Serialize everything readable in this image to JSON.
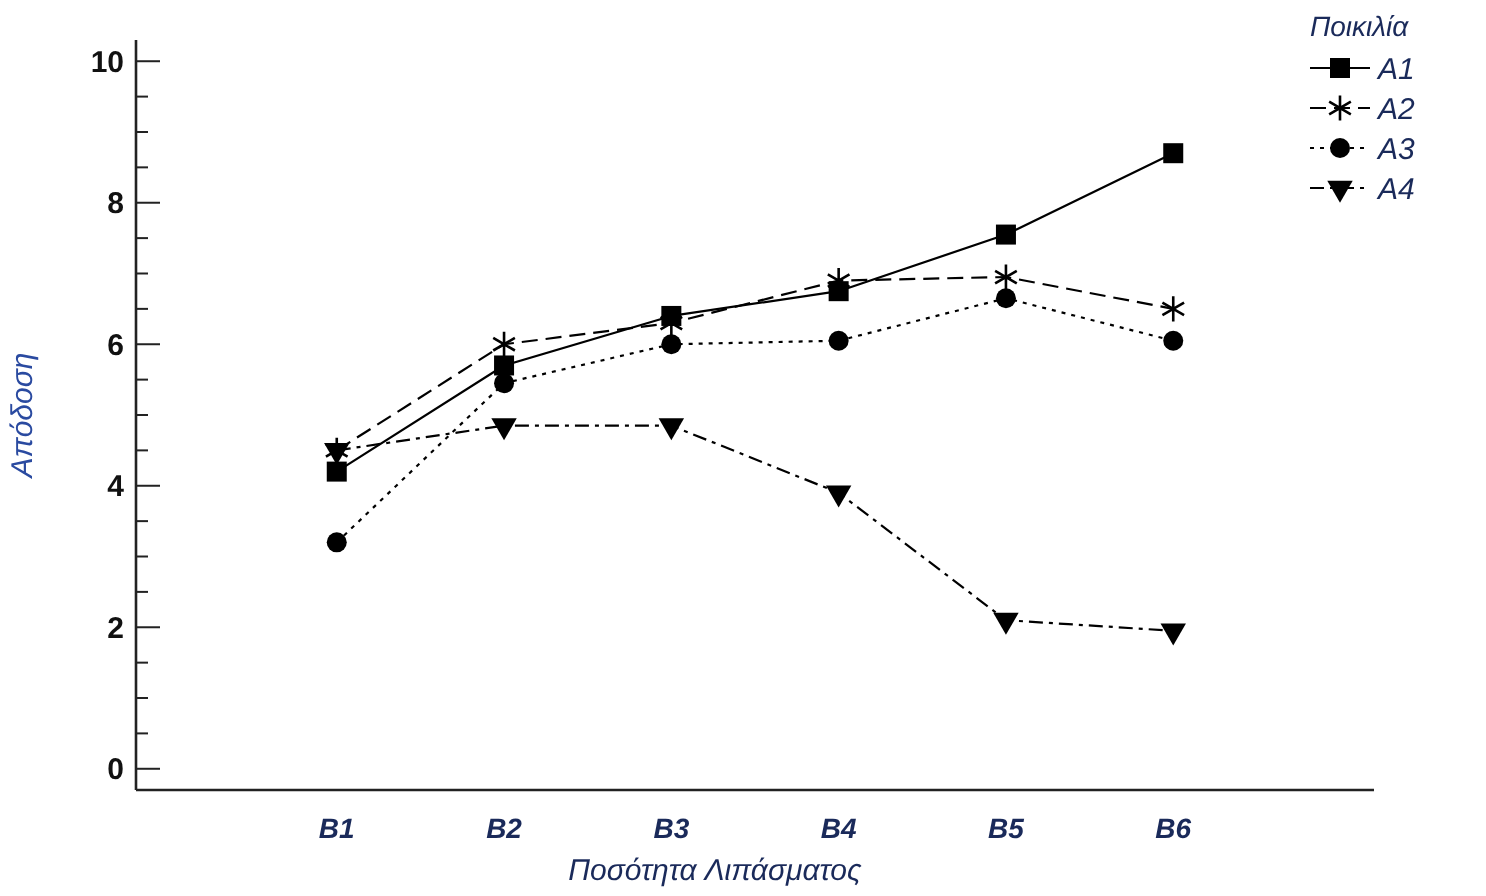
{
  "chart_data": {
    "type": "line",
    "xlabel": "Ποσότητα Λιπάσματος",
    "ylabel": "Απόδοση",
    "legend_title": "Ποικιλία",
    "legend": "top right",
    "categories": [
      "B1",
      "B2",
      "B3",
      "B4",
      "B5",
      "B6"
    ],
    "ylim": [
      -0.3,
      10.3
    ],
    "yticks": [
      0,
      {
        "value": 0.5,
        "label": null
      },
      {
        "value": 1,
        "label": null
      },
      {
        "value": 1.5,
        "label": null
      },
      2,
      {
        "value": 2.5,
        "label": null
      },
      {
        "value": 3,
        "label": null
      },
      {
        "value": 3.5,
        "label": null
      },
      4,
      {
        "value": 4.5,
        "label": null
      },
      {
        "value": 5,
        "label": null
      },
      {
        "value": 5.5,
        "label": null
      },
      6,
      {
        "value": 6.5,
        "label": null
      },
      {
        "value": 7,
        "label": null
      },
      {
        "value": 7.5,
        "label": null
      },
      8,
      {
        "value": 8.5,
        "label": null
      },
      {
        "value": 9,
        "label": null
      },
      {
        "value": 9.5,
        "label": null
      },
      10
    ],
    "grid": false,
    "series": [
      {
        "name": "A1",
        "color": "#000000",
        "marker": "square",
        "line_style": "solid",
        "values": [
          4.2,
          5.7,
          6.4,
          6.75,
          7.55,
          8.7
        ]
      },
      {
        "name": "A2",
        "color": "#000000",
        "marker": "cross",
        "line_style": "dashed",
        "values": [
          4.5,
          6.0,
          6.3,
          6.9,
          6.95,
          6.5
        ]
      },
      {
        "name": "A3",
        "color": "#000000",
        "marker": "circle",
        "line_style": "dotted",
        "values": [
          3.2,
          5.45,
          6.0,
          6.05,
          6.65,
          6.05
        ]
      },
      {
        "name": "A4",
        "color": "#000000",
        "marker": "triangle",
        "line_style": "dashdot",
        "values": [
          4.5,
          4.85,
          4.85,
          3.9,
          2.1,
          1.95
        ]
      }
    ]
  }
}
